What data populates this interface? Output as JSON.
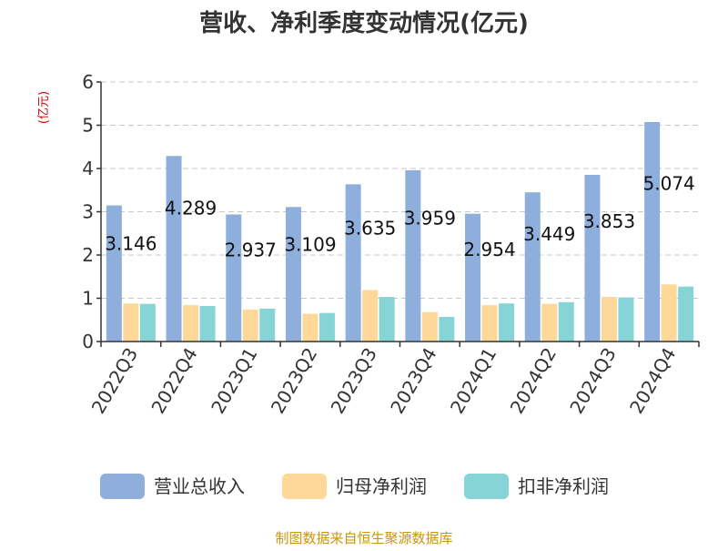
{
  "chart_data": {
    "type": "bar",
    "title": "营收、净利季度变动情况(亿元)",
    "unit_label": "(亿元)",
    "categories": [
      "2022Q3",
      "2022Q4",
      "2023Q1",
      "2023Q2",
      "2023Q3",
      "2023Q4",
      "2024Q1",
      "2024Q2",
      "2024Q3",
      "2024Q4"
    ],
    "series": [
      {
        "name": "营业总收入",
        "color": "#8eaedb",
        "values": [
          3.146,
          4.289,
          2.937,
          3.109,
          3.635,
          3.959,
          2.954,
          3.449,
          3.853,
          5.074
        ]
      },
      {
        "name": "归母净利润",
        "color": "#fdd898",
        "values": [
          0.88,
          0.84,
          0.74,
          0.64,
          1.19,
          0.68,
          0.84,
          0.87,
          1.03,
          1.32
        ]
      },
      {
        "name": "扣非净利润",
        "color": "#86d4d6",
        "values": [
          0.87,
          0.82,
          0.76,
          0.66,
          1.03,
          0.57,
          0.88,
          0.91,
          1.02,
          1.27
        ]
      }
    ],
    "data_labels": [
      "3.146",
      "4.289",
      "2.937",
      "3.109",
      "3.635",
      "3.959",
      "2.954",
      "3.449",
      "3.853",
      "5.074"
    ],
    "yticks": [
      "0",
      "1",
      "2",
      "3",
      "4",
      "5",
      "6"
    ],
    "ylim": [
      0,
      6
    ],
    "grid": true,
    "legend_position": "bottom"
  },
  "source": "制图数据来自恒生聚源数据库"
}
